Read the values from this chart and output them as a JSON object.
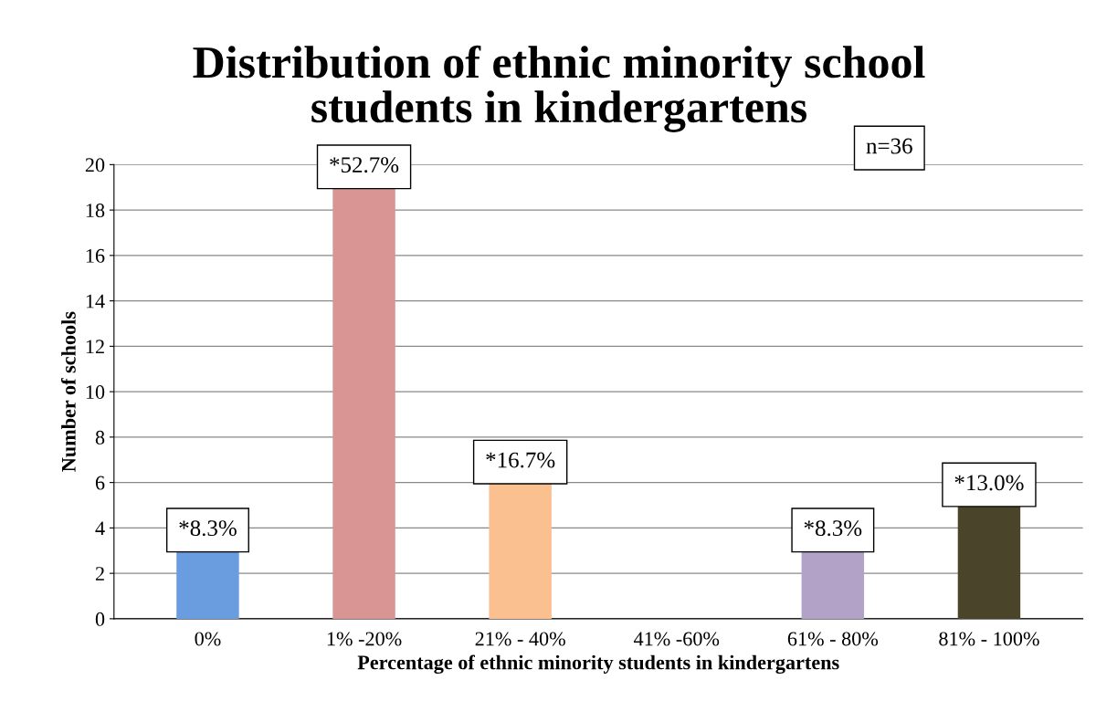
{
  "chart_data": {
    "type": "bar",
    "title": "Distribution of ethnic minority school\nstudents in kindergartens",
    "xlabel": "Percentage of ethnic minority students in kindergartens",
    "ylabel": "Number of schools",
    "categories": [
      "0%",
      "1% -20%",
      "21% - 40%",
      "41% -60%",
      "61% - 80%",
      "81% - 100%"
    ],
    "values": [
      3,
      19,
      6,
      0,
      3,
      5
    ],
    "colors": [
      "#6a9de0",
      "#d99594",
      "#fac090",
      "#8db3e2",
      "#b2a2c7",
      "#4a452a"
    ],
    "annotations": [
      {
        "text": "*8.3%",
        "x": "0%",
        "y": 3
      },
      {
        "text": "*52.7%",
        "x": "1% -20%",
        "y": 19
      },
      {
        "text": "*16.7%",
        "x": "21% - 40%",
        "y": 6
      },
      {
        "text": "*8.3%",
        "x": "61% - 80%",
        "y": 3
      },
      {
        "text": "*13.0%",
        "x": "81% - 100%",
        "y": 5
      },
      "n=36"
    ],
    "ylim": [
      0,
      20
    ],
    "yticks": [
      0,
      2,
      4,
      6,
      8,
      10,
      12,
      14,
      16,
      18,
      20
    ],
    "grid": "y",
    "legend": false
  }
}
